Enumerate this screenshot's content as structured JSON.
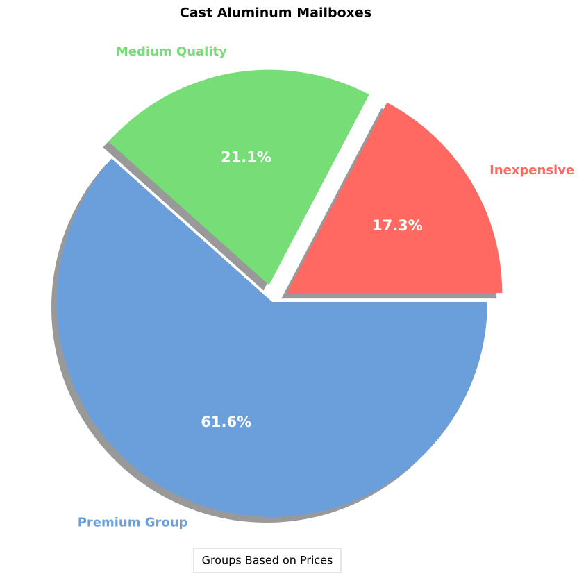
{
  "chart_data": {
    "type": "pie",
    "title": "Cast Aluminum Mailboxes",
    "categories": [
      "Inexpensive",
      "Medium Quality",
      "Premium Group"
    ],
    "values": [
      17.3,
      21.1,
      61.6
    ],
    "value_labels": [
      "17.3%",
      "21.1%",
      "61.6%"
    ],
    "colors": [
      "#ff6961",
      "#77dd77",
      "#6a9fdc"
    ],
    "explode": [
      0.08,
      0.08,
      0
    ],
    "startangle": 0,
    "shadow": true,
    "legend_title": "Groups Based on Prices"
  }
}
